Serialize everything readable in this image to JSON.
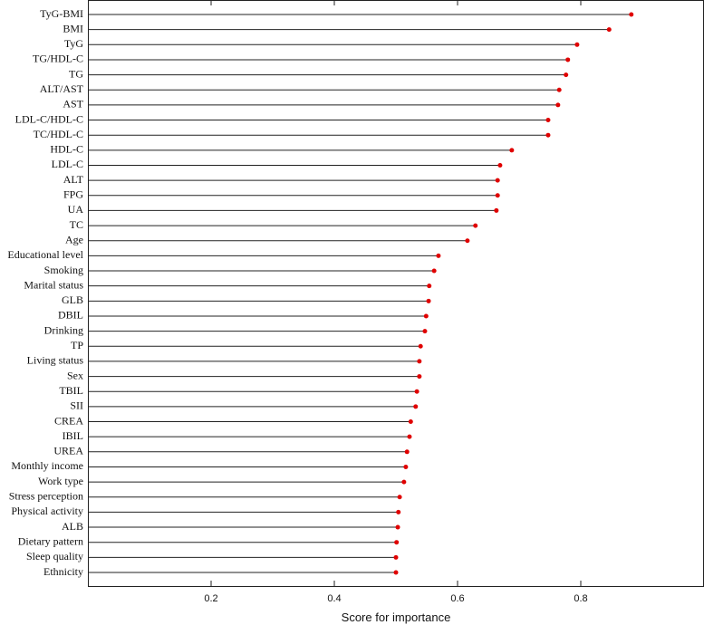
{
  "chart_data": {
    "type": "lollipop",
    "xlabel": "Score for importance",
    "categories": [
      "TyG-BMI",
      "BMI",
      "TyG",
      "TG/HDL-C",
      "TG",
      "ALT/AST",
      "AST",
      "LDL-C/HDL-C",
      "TC/HDL-C",
      "HDL-C",
      "LDL-C",
      "ALT",
      "FPG",
      "UA",
      "TC",
      "Age",
      "Educational level",
      "Smoking",
      "Marital status",
      "GLB",
      "DBIL",
      "Drinking",
      "TP",
      "Living status",
      "Sex",
      "TBIL",
      "SII",
      "CREA",
      "IBIL",
      "UREA",
      "Monthly income",
      "Work type",
      "Stress perception",
      "Physical activity",
      "ALB",
      "Dietary pattern",
      "Sleep quality",
      "Ethnicity"
    ],
    "values": [
      0.882,
      0.846,
      0.794,
      0.779,
      0.776,
      0.765,
      0.763,
      0.747,
      0.747,
      0.688,
      0.669,
      0.665,
      0.665,
      0.663,
      0.629,
      0.616,
      0.569,
      0.562,
      0.554,
      0.553,
      0.549,
      0.547,
      0.54,
      0.538,
      0.538,
      0.534,
      0.532,
      0.524,
      0.522,
      0.518,
      0.516,
      0.513,
      0.506,
      0.504,
      0.503,
      0.501,
      0.5,
      0.5
    ],
    "color": "#e00000",
    "xlim": [
      0,
      1
    ],
    "xticks": [
      0.2,
      0.4,
      0.6,
      0.8
    ]
  }
}
